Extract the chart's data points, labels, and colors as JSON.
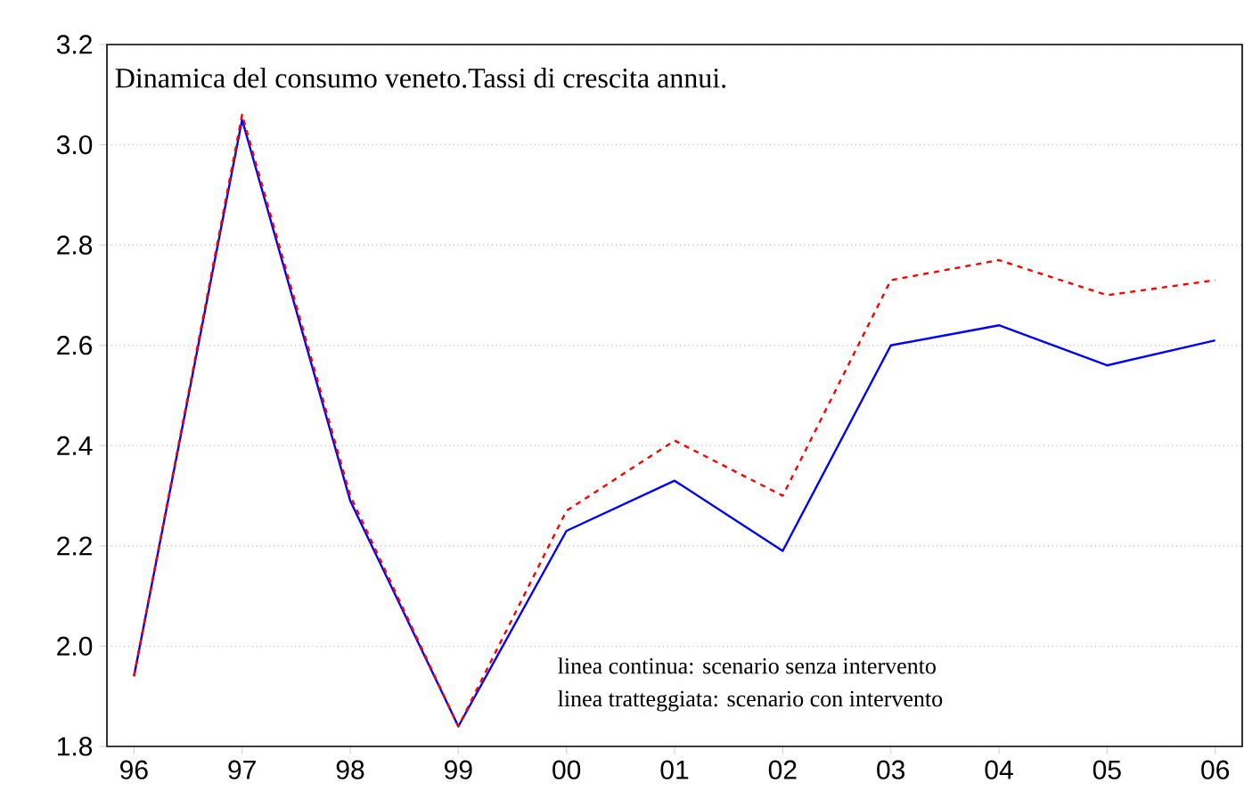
{
  "chart_data": {
    "type": "line",
    "title": "Dinamica del consumo veneto.Tassi di crescita annui.",
    "categories": [
      "96",
      "97",
      "98",
      "99",
      "00",
      "01",
      "02",
      "03",
      "04",
      "05",
      "06"
    ],
    "series": [
      {
        "color": "#0000ff",
        "line_style": "solid",
        "values": [
          1.94,
          3.05,
          2.29,
          1.84,
          2.23,
          2.33,
          2.19,
          2.6,
          2.64,
          2.56,
          2.61
        ]
      },
      {
        "color": "#ff0000",
        "line_style": "dashed",
        "values": [
          1.94,
          3.06,
          2.3,
          1.84,
          2.27,
          2.41,
          2.3,
          2.73,
          2.77,
          2.7,
          2.73
        ]
      }
    ],
    "ylim": [
      1.8,
      3.2
    ],
    "yticks": [
      1.8,
      {
        "value": 2,
        "label": "2.0"
      },
      2.2,
      2.4,
      2.6,
      2.8,
      {
        "value": 3,
        "label": "3.0"
      },
      3.2
    ],
    "grid": "y",
    "annotations": [
      "linea continua: scenario senza intervento",
      "linea tratteggiata: scenario con intervento"
    ]
  }
}
